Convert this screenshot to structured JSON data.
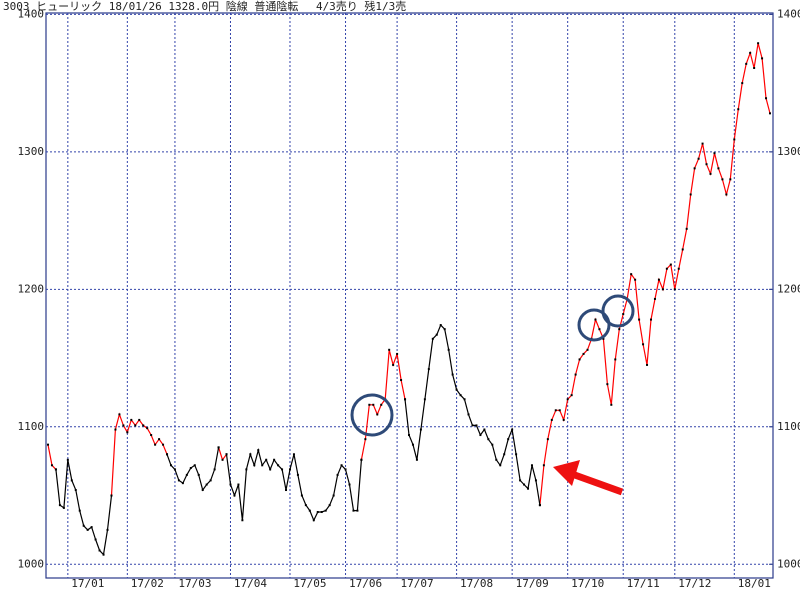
{
  "chart_data": {
    "type": "line",
    "title": "3003 ヒューリック 18/01/26 1328.0円 陰線 普通陰転　 4/3売り 残1/3売",
    "xlim": [
      0,
      182
    ],
    "xticks": [
      {
        "value": 5,
        "label": "17/01"
      },
      {
        "value": 20,
        "label": "17/02"
      },
      {
        "value": 32,
        "label": "17/03"
      },
      {
        "value": 46,
        "label": "17/04"
      },
      {
        "value": 61,
        "label": "17/05"
      },
      {
        "value": 75,
        "label": "17/06"
      },
      {
        "value": 88,
        "label": "17/07"
      },
      {
        "value": 103,
        "label": "17/08"
      },
      {
        "value": 117,
        "label": "17/09"
      },
      {
        "value": 131,
        "label": "17/10"
      },
      {
        "value": 145,
        "label": "17/11"
      },
      {
        "value": 158,
        "label": "17/12"
      },
      {
        "value": 173,
        "label": "18/01"
      }
    ],
    "ylim": [
      990,
      1401
    ],
    "yticks": [
      1000,
      1100,
      1200,
      1300,
      1400
    ],
    "y2lim": [
      990,
      1401
    ],
    "y2ticks": [
      1000,
      1100,
      1200,
      1300,
      1400
    ],
    "grid": true,
    "series": [
      {
        "color": "#ff0000",
        "values": [
          1087,
          1072,
          1069,
          null,
          null,
          null,
          null,
          null,
          null,
          null,
          null,
          null,
          null,
          null,
          null,
          null,
          1050,
          1098,
          1109,
          1101,
          1096,
          1105,
          1101,
          1105,
          1101,
          1099,
          1094,
          1087,
          1091,
          1087,
          1080,
          null,
          null,
          null,
          null,
          null,
          null,
          null,
          null,
          null,
          null,
          null,
          null,
          1085,
          1076,
          1080,
          null,
          null,
          null,
          null,
          null,
          null,
          null,
          null,
          null,
          null,
          null,
          null,
          null,
          null,
          null,
          null,
          null,
          null,
          null,
          null,
          null,
          null,
          null,
          null,
          null,
          null,
          null,
          null,
          null,
          null,
          null,
          null,
          null,
          1076,
          1091,
          1116,
          1116,
          1109,
          1116,
          1120,
          1156,
          1145,
          1153,
          1134,
          1120,
          null,
          null,
          null,
          null,
          null,
          null,
          null,
          null,
          null,
          null,
          null,
          null,
          null,
          null,
          null,
          null,
          null,
          null,
          null,
          null,
          null,
          null,
          null,
          null,
          null,
          null,
          null,
          null,
          null,
          null,
          null,
          null,
          null,
          1043,
          1072,
          1091,
          1105,
          1112,
          1112,
          1105,
          1120,
          1123,
          1138,
          1149,
          1153,
          1156,
          1164,
          1178,
          1171,
          1164,
          1131,
          1116,
          1149,
          1171,
          1182,
          1193,
          1211,
          1207,
          1178,
          1160,
          1145,
          1178,
          1193,
          1207,
          1200,
          1215,
          1218,
          1200,
          1215,
          1229,
          1244,
          1269,
          1288,
          1295,
          1306,
          1291,
          1284,
          1299,
          1288,
          1280,
          1269,
          1280,
          1309,
          1331,
          1350,
          1364,
          1372,
          1361,
          1379,
          1368,
          1339,
          1328
        ]
      },
      {
        "color": "#000000",
        "values": [
          null,
          null,
          1069,
          1043,
          1041,
          1076,
          1061,
          1054,
          1039,
          1028,
          1025,
          1027,
          1018,
          1010,
          1007,
          1025,
          1050,
          null,
          null,
          null,
          null,
          null,
          null,
          null,
          null,
          null,
          null,
          null,
          null,
          null,
          1080,
          1072,
          1069,
          1061,
          1059,
          1065,
          1070,
          1072,
          1065,
          1054,
          1058,
          1061,
          1069,
          1085,
          null,
          1080,
          1058,
          1050,
          1058,
          1032,
          1069,
          1080,
          1072,
          1083,
          1072,
          1076,
          1069,
          1076,
          1072,
          1069,
          1054,
          1069,
          1080,
          1065,
          1050,
          1043,
          1039,
          1032,
          1038,
          1038,
          1039,
          1043,
          1050,
          1065,
          1072,
          1069,
          1058,
          1039,
          1039,
          1076,
          null,
          null,
          null,
          null,
          null,
          null,
          null,
          null,
          null,
          null,
          1120,
          1094,
          1087,
          1076,
          1098,
          1120,
          1142,
          1164,
          1167,
          1174,
          1171,
          1156,
          1138,
          1127,
          1123,
          1120,
          1109,
          1101,
          1101,
          1094,
          1098,
          1091,
          1087,
          1076,
          1072,
          1080,
          1091,
          1098,
          1080,
          1061,
          1058,
          1055,
          1072,
          1061,
          1043,
          null,
          null,
          null,
          null,
          null,
          null,
          null,
          null,
          null,
          null,
          null,
          null,
          null,
          null,
          null,
          null,
          null,
          null,
          null,
          null,
          null,
          null,
          null,
          null,
          null,
          null,
          null,
          null,
          null,
          null,
          null,
          null,
          null,
          null,
          null,
          null,
          null,
          null,
          null,
          null,
          null,
          null,
          null,
          null,
          null,
          null,
          null,
          null,
          null,
          null,
          null,
          null,
          null,
          null,
          null,
          null,
          null,
          null
        ]
      }
    ]
  }
}
